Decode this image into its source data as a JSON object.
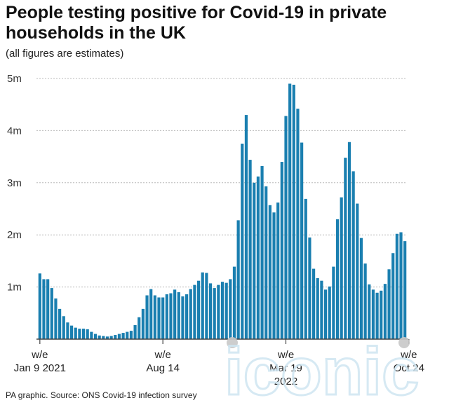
{
  "header": {
    "title": "People testing positive for Covid-19 in private households in the UK",
    "subtitle": "(all figures are estimates)"
  },
  "footer": {
    "source": "PA graphic. Source: ONS Covid-19 infection survey"
  },
  "watermark": {
    "text": "iconic"
  },
  "colors": {
    "bar": "#1a7fb0",
    "grid": "#b8b8b8",
    "axis": "#444444",
    "marker": "#c8c8c8"
  },
  "chart_data": {
    "type": "bar",
    "title": "People testing positive for Covid-19 in private households in the UK",
    "subtitle": "(all figures are estimates)",
    "y_unit": "millions",
    "ylim": [
      0,
      5
    ],
    "yticks": [
      {
        "value": 1,
        "label": "1m"
      },
      {
        "value": 2,
        "label": "2m"
      },
      {
        "value": 3,
        "label": "3m"
      },
      {
        "value": 4,
        "label": "4m"
      },
      {
        "value": 5,
        "label": "5m"
      }
    ],
    "grid": true,
    "x_labels": [
      {
        "index": 0,
        "lines": [
          "w/e",
          "Jan 9 2021"
        ]
      },
      {
        "index": 31,
        "lines": [
          "w/e",
          "Aug 14"
        ]
      },
      {
        "index": 62,
        "lines": [
          "w/e",
          "Mar 19",
          "2022"
        ]
      },
      {
        "index": 93,
        "lines": [
          "w/e",
          "Oct 24"
        ]
      }
    ],
    "values": [
      1.26,
      1.15,
      1.15,
      0.98,
      0.78,
      0.58,
      0.44,
      0.32,
      0.26,
      0.22,
      0.2,
      0.2,
      0.19,
      0.14,
      0.1,
      0.07,
      0.06,
      0.05,
      0.06,
      0.08,
      0.1,
      0.12,
      0.14,
      0.16,
      0.27,
      0.42,
      0.58,
      0.84,
      0.96,
      0.84,
      0.8,
      0.8,
      0.86,
      0.88,
      0.95,
      0.9,
      0.82,
      0.86,
      0.96,
      1.04,
      1.12,
      1.28,
      1.27,
      1.07,
      0.98,
      1.04,
      1.1,
      1.08,
      1.15,
      1.39,
      2.28,
      3.75,
      4.3,
      3.44,
      3.0,
      3.12,
      3.32,
      2.93,
      2.57,
      2.43,
      2.62,
      3.4,
      4.28,
      4.9,
      4.88,
      4.42,
      3.77,
      2.69,
      1.95,
      1.35,
      1.17,
      1.12,
      0.95,
      1.01,
      1.39,
      2.3,
      2.72,
      3.48,
      3.78,
      3.22,
      2.6,
      1.94,
      1.45,
      1.05,
      0.95,
      0.89,
      0.93,
      1.06,
      1.34,
      1.65,
      2.02,
      2.05,
      1.88
    ]
  }
}
